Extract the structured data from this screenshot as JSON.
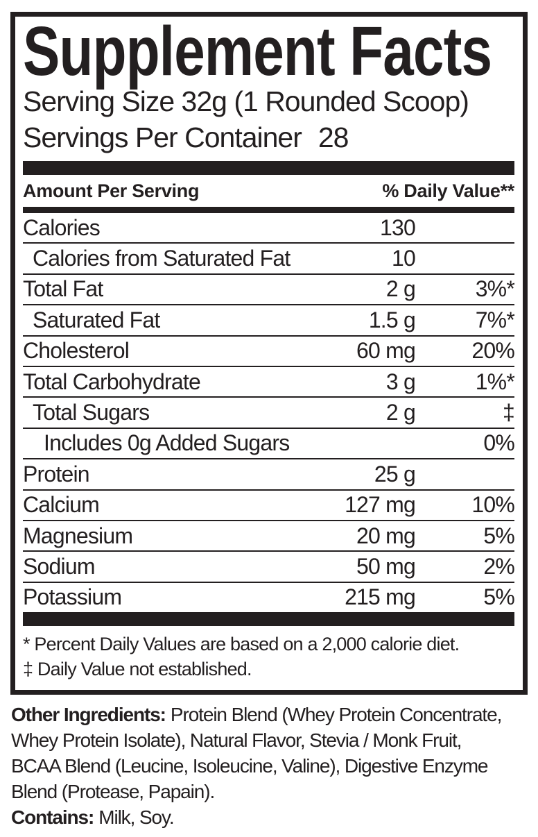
{
  "label": {
    "title": "Supplement Facts",
    "serving_size": "Serving Size 32g (1 Rounded Scoop)",
    "servings_per_container_label": "Servings Per Container",
    "servings_per_container_value": "28",
    "header": {
      "amount": "Amount Per Serving",
      "daily_value": "% Daily Value**"
    },
    "rows": [
      {
        "name": "Calories",
        "amount": "130",
        "dv": "",
        "indent": 0
      },
      {
        "name": "Calories from Saturated Fat",
        "amount": "10",
        "dv": "",
        "indent": 1
      },
      {
        "name": "Total Fat",
        "amount": "2 g",
        "dv": "3%*",
        "indent": 0
      },
      {
        "name": "Saturated Fat",
        "amount": "1.5 g",
        "dv": "7%*",
        "indent": 1
      },
      {
        "name": "Cholesterol",
        "amount": "60 mg",
        "dv": "20%",
        "indent": 0
      },
      {
        "name": "Total Carbohydrate",
        "amount": "3 g",
        "dv": "1%*",
        "indent": 0
      },
      {
        "name": "Total Sugars",
        "amount": "2 g",
        "dv": "‡",
        "indent": 1
      },
      {
        "name": "Includes 0g Added Sugars",
        "amount": "",
        "dv": "0%",
        "indent": 2
      },
      {
        "name": "Protein",
        "amount": "25 g",
        "dv": "",
        "indent": 0
      },
      {
        "name": "Calcium",
        "amount": "127 mg",
        "dv": "10%",
        "indent": 0
      },
      {
        "name": "Magnesium",
        "amount": "20 mg",
        "dv": "5%",
        "indent": 0
      },
      {
        "name": "Sodium",
        "amount": "50 mg",
        "dv": "2%",
        "indent": 0
      },
      {
        "name": "Potassium",
        "amount": "215 mg",
        "dv": "5%",
        "indent": 0
      }
    ],
    "footnotes": [
      "* Percent Daily Values are based on a 2,000 calorie diet.",
      "‡ Daily Value not established."
    ]
  },
  "ingredients": {
    "label": "Other Ingredients:",
    "lines": [
      "Protein Blend (Whey Protein Concentrate,",
      "Whey Protein Isolate), Natural Flavor, Stevia / Monk Fruit,",
      "BCAA Blend (Leucine, Isoleucine, Valine), Digestive Enzyme",
      "Blend (Protease, Papain)."
    ],
    "contains_label": "Contains:",
    "contains_text": "Milk, Soy."
  },
  "colors": {
    "ink": "#231f20",
    "background": "#ffffff"
  }
}
